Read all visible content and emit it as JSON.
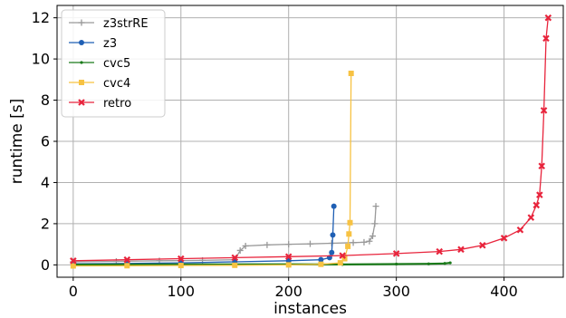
{
  "chart_data": {
    "type": "line",
    "xlabel": "instances",
    "ylabel": "runtime [s]",
    "xlim": [
      -15,
      455
    ],
    "ylim": [
      -0.6,
      12.6
    ],
    "xticks": [
      0,
      100,
      200,
      300,
      400
    ],
    "yticks": [
      0,
      2,
      4,
      6,
      8,
      10,
      12
    ],
    "grid": true,
    "legend_position": "top-left",
    "series": [
      {
        "name": "z3strRE",
        "color": "#999999",
        "marker": "plus",
        "points": [
          [
            0,
            0.15
          ],
          [
            40,
            0.17
          ],
          [
            80,
            0.2
          ],
          [
            120,
            0.22
          ],
          [
            150,
            0.25
          ],
          [
            155,
            0.7
          ],
          [
            160,
            0.92
          ],
          [
            180,
            0.97
          ],
          [
            200,
            1.0
          ],
          [
            220,
            1.02
          ],
          [
            240,
            1.05
          ],
          [
            260,
            1.08
          ],
          [
            270,
            1.1
          ],
          [
            275,
            1.15
          ],
          [
            278,
            1.4
          ],
          [
            280,
            2.0
          ],
          [
            281,
            2.85
          ]
        ]
      },
      {
        "name": "z3",
        "color": "#1f5fb4",
        "marker": "circle",
        "points": [
          [
            0,
            0.05
          ],
          [
            50,
            0.07
          ],
          [
            100,
            0.1
          ],
          [
            150,
            0.15
          ],
          [
            200,
            0.2
          ],
          [
            230,
            0.25
          ],
          [
            238,
            0.35
          ],
          [
            240,
            0.6
          ],
          [
            241,
            1.45
          ],
          [
            242,
            2.85
          ]
        ]
      },
      {
        "name": "cvc5",
        "color": "#1a7a1a",
        "marker": "dot",
        "points": [
          [
            0,
            0.01
          ],
          [
            100,
            0.02
          ],
          [
            200,
            0.03
          ],
          [
            250,
            0.02
          ],
          [
            300,
            0.04
          ],
          [
            330,
            0.05
          ],
          [
            345,
            0.07
          ],
          [
            350,
            0.1
          ]
        ]
      },
      {
        "name": "cvc4",
        "color": "#f7c242",
        "marker": "square",
        "points": [
          [
            0,
            -0.05
          ],
          [
            50,
            -0.04
          ],
          [
            100,
            -0.03
          ],
          [
            150,
            -0.02
          ],
          [
            200,
            0.0
          ],
          [
            230,
            0.03
          ],
          [
            248,
            0.1
          ],
          [
            252,
            0.3
          ],
          [
            255,
            0.9
          ],
          [
            256,
            1.5
          ],
          [
            257,
            2.05
          ],
          [
            258,
            9.3
          ]
        ]
      },
      {
        "name": "retro",
        "color": "#e8243c",
        "marker": "x",
        "points": [
          [
            0,
            0.2
          ],
          [
            50,
            0.25
          ],
          [
            100,
            0.3
          ],
          [
            150,
            0.35
          ],
          [
            200,
            0.4
          ],
          [
            250,
            0.45
          ],
          [
            300,
            0.55
          ],
          [
            340,
            0.65
          ],
          [
            360,
            0.75
          ],
          [
            380,
            0.95
          ],
          [
            400,
            1.3
          ],
          [
            415,
            1.7
          ],
          [
            425,
            2.3
          ],
          [
            430,
            2.9
          ],
          [
            433,
            3.4
          ],
          [
            435,
            4.8
          ],
          [
            437,
            7.5
          ],
          [
            439,
            11.0
          ],
          [
            441,
            12.0
          ]
        ]
      }
    ]
  }
}
